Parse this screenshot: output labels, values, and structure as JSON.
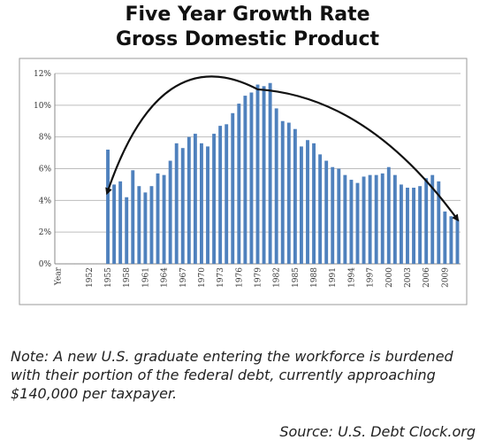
{
  "chart_data": {
    "type": "bar",
    "title_line1": "Five Year Growth Rate",
    "title_line2": "Gross Domestic Product",
    "xlabel": "",
    "ylabel": "",
    "ylim": [
      0,
      12
    ],
    "y_ticks": [
      {
        "value": 0,
        "label": "0%"
      },
      {
        "value": 2,
        "label": "2%"
      },
      {
        "value": 4,
        "label": "4%"
      },
      {
        "value": 6,
        "label": "6%"
      },
      {
        "value": 8,
        "label": "8%"
      },
      {
        "value": 10,
        "label": "10%"
      },
      {
        "value": 12,
        "label": "12%"
      }
    ],
    "x_tick_labels": [
      "Year",
      "1952",
      "1955",
      "1958",
      "1961",
      "1964",
      "1967",
      "1970",
      "1973",
      "1976",
      "1979",
      "1982",
      "1985",
      "1988",
      "1991",
      "1994",
      "1997",
      "2000",
      "2003",
      "2006",
      "2009"
    ],
    "categories": [
      "Year",
      "1948",
      "1949",
      "1950",
      "1951",
      "1952",
      "1953",
      "1954",
      "1955",
      "1956",
      "1957",
      "1958",
      "1959",
      "1960",
      "1961",
      "1962",
      "1963",
      "1964",
      "1965",
      "1966",
      "1967",
      "1968",
      "1969",
      "1970",
      "1971",
      "1972",
      "1973",
      "1974",
      "1975",
      "1976",
      "1977",
      "1978",
      "1979",
      "1980",
      "1981",
      "1982",
      "1983",
      "1984",
      "1985",
      "1986",
      "1987",
      "1988",
      "1989",
      "1990",
      "1991",
      "1992",
      "1993",
      "1994",
      "1995",
      "1996",
      "1997",
      "1998",
      "1999",
      "2000",
      "2001",
      "2002",
      "2003",
      "2004",
      "2005",
      "2006",
      "2007",
      "2008",
      "2009",
      "2010",
      "2011"
    ],
    "values": [
      0,
      0,
      0,
      0,
      0,
      0,
      0,
      0,
      7.2,
      5.0,
      5.2,
      4.2,
      5.9,
      4.9,
      4.5,
      4.9,
      5.7,
      5.6,
      6.5,
      7.6,
      7.3,
      8.0,
      8.2,
      7.6,
      7.4,
      8.2,
      8.7,
      8.8,
      9.5,
      10.1,
      10.6,
      10.8,
      11.3,
      11.2,
      11.4,
      9.8,
      9.0,
      8.9,
      8.5,
      7.4,
      7.8,
      7.6,
      6.9,
      6.5,
      6.1,
      6.0,
      5.6,
      5.3,
      5.1,
      5.5,
      5.6,
      5.6,
      5.7,
      6.1,
      5.6,
      5.0,
      4.8,
      4.8,
      4.9,
      5.4,
      5.6,
      5.2,
      3.3,
      3.0,
      2.8
    ],
    "trend_arrow": {
      "x_start": "1955",
      "y_start": 4.6,
      "x_peak": "1979",
      "y_peak": 11.0,
      "x_end": "2011",
      "y_end": 2.8
    },
    "bar_color": "#4f81bd",
    "grid": "horizontal"
  },
  "note": "Note: A new U.S. graduate entering the workforce is burdened with their portion of the federal debt, currently approaching $140,000 per taxpayer.",
  "source": "Source: U.S. Debt Clock.org"
}
